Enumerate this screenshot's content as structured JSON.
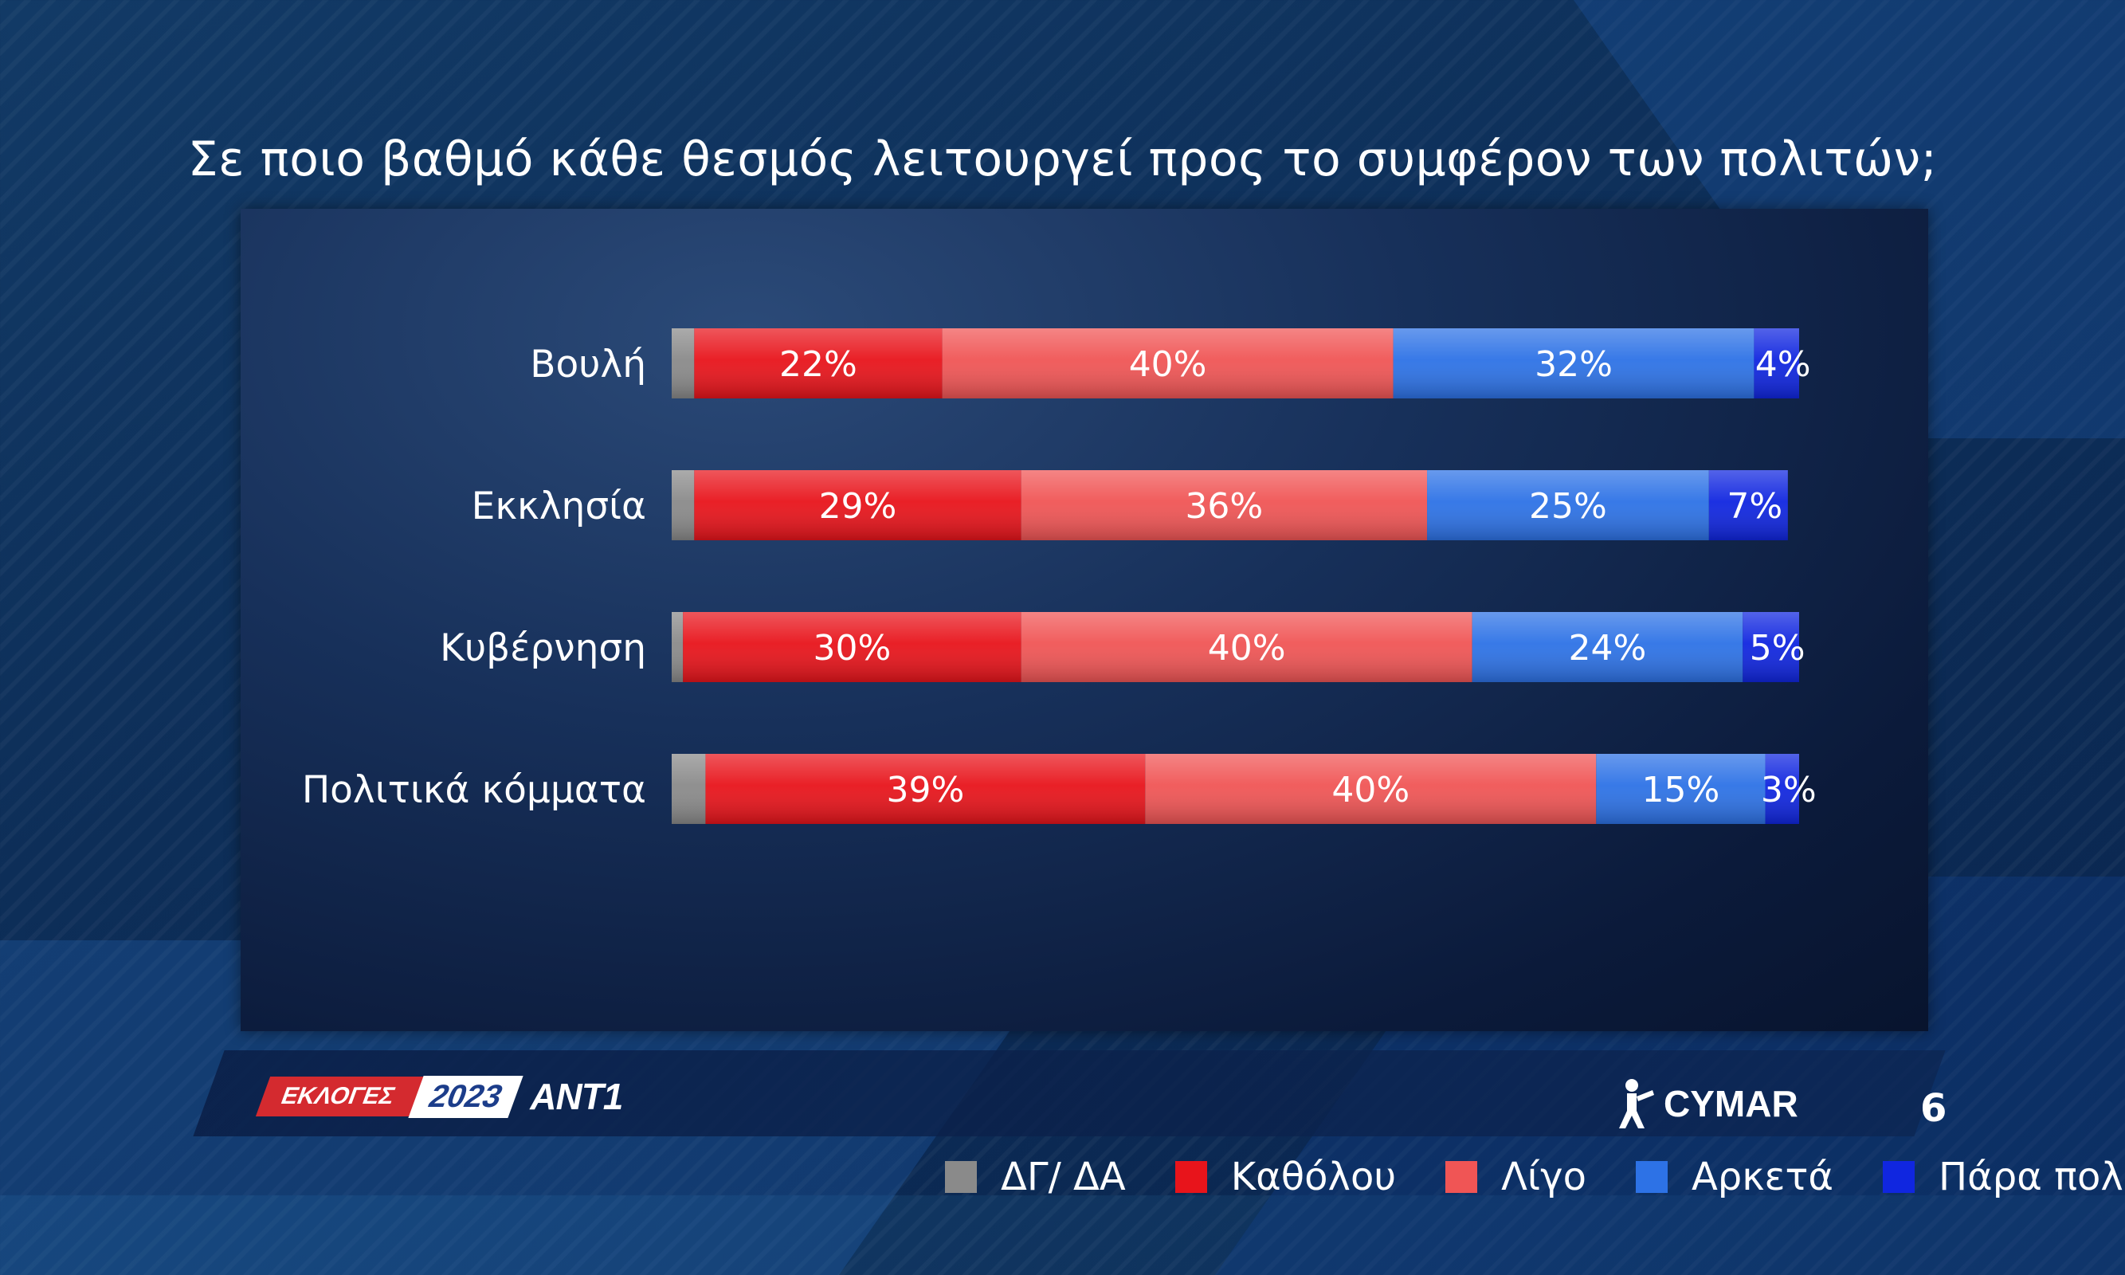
{
  "title": "Σε ποιο βαθμό κάθε θεσμός λειτουργεί προς το συμφέρον των πολιτών;",
  "chart_data": {
    "type": "bar",
    "orientation": "horizontal",
    "stacked": true,
    "categories": [
      "Βουλή",
      "Εκκλησία",
      "Κυβέρνηση",
      "Πολιτικά κόμματα"
    ],
    "series": [
      {
        "name": "ΔΓ/ ΔΑ",
        "color": "#8a8a8a",
        "values": [
          2,
          2,
          1,
          3
        ],
        "labels": [
          "",
          "",
          "",
          ""
        ]
      },
      {
        "name": "Καθόλου",
        "color": "#e8141b",
        "values": [
          22,
          29,
          30,
          39
        ],
        "labels": [
          "22%",
          "29%",
          "30%",
          "39%"
        ]
      },
      {
        "name": "Λίγο",
        "color": "#f05555",
        "values": [
          40,
          36,
          40,
          40
        ],
        "labels": [
          "40%",
          "36%",
          "40%",
          "40%"
        ]
      },
      {
        "name": "Αρκετά",
        "color": "#2d72e6",
        "values": [
          32,
          25,
          24,
          15
        ],
        "labels": [
          "32%",
          "25%",
          "24%",
          "15%"
        ]
      },
      {
        "name": "Πάρα πολύ",
        "color": "#1026e0",
        "values": [
          4,
          7,
          5,
          3
        ],
        "labels": [
          "4%",
          "7%",
          "5%",
          "3%"
        ]
      }
    ],
    "xlim": [
      0,
      100
    ],
    "grid": false,
    "legend": "bottom"
  },
  "footer": {
    "badge_text": "ΕΚΛΟΓΕΣ",
    "badge_year": "2023",
    "channel": "ΑΝΤ1",
    "pollster": "CYMAR",
    "page_number": "6"
  }
}
